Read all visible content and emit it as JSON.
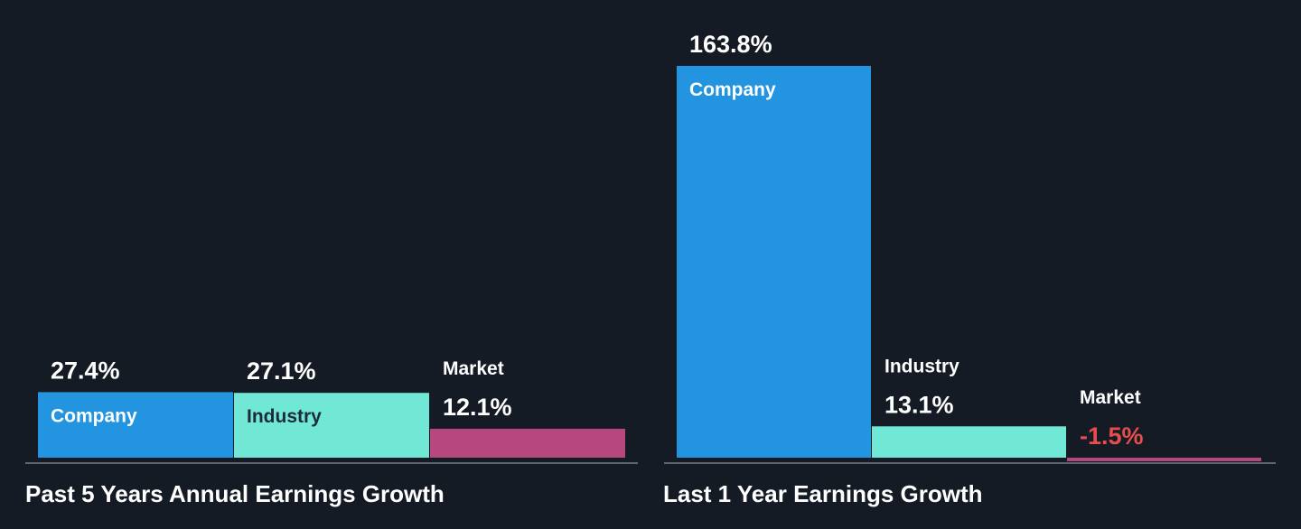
{
  "colors": {
    "background": "#151b24",
    "company": "#2394df",
    "industry": "#71e7d6",
    "market": "#b6487f",
    "negative_text": "#e64d4d",
    "baseline": "#7a7f87"
  },
  "chart_data": [
    {
      "type": "bar",
      "title": "Past 5 Years Annual Earnings Growth",
      "categories": [
        "Company",
        "Industry",
        "Market"
      ],
      "values": [
        27.4,
        27.1,
        12.1
      ],
      "value_labels": [
        "27.4%",
        "27.1%",
        "12.1%"
      ],
      "ylim": [
        0,
        163.8
      ],
      "grid": false,
      "legend": "none"
    },
    {
      "type": "bar",
      "title": "Last 1 Year Earnings Growth",
      "categories": [
        "Company",
        "Industry",
        "Market"
      ],
      "values": [
        163.8,
        13.1,
        -1.5
      ],
      "value_labels": [
        "163.8%",
        "13.1%",
        "-1.5%"
      ],
      "ylim": [
        -1.5,
        163.8
      ],
      "grid": false,
      "legend": "none"
    }
  ]
}
